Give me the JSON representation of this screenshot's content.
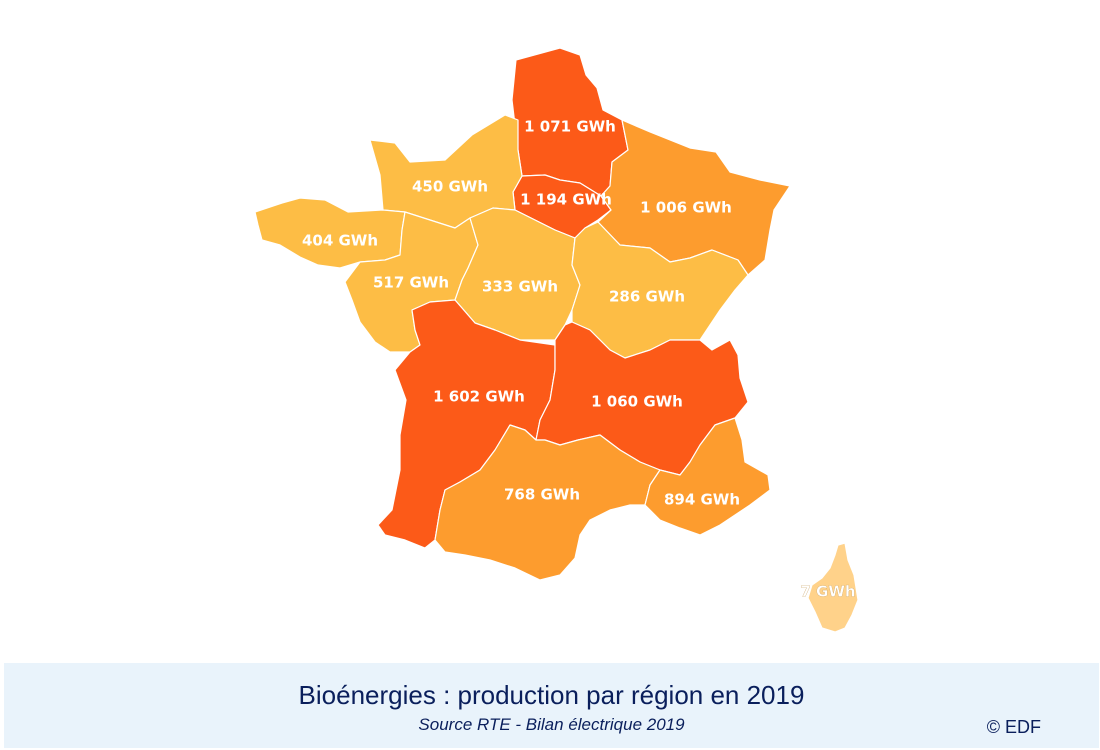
{
  "colors": {
    "scale_low": "#ffd28a",
    "scale_mid_low": "#fdbd45",
    "scale_mid": "#fd9c2e",
    "scale_high": "#fc5a18"
  },
  "regions": [
    {
      "id": "hauts-de-france",
      "value": "1 071 GWh",
      "level": "high"
    },
    {
      "id": "ile-de-france",
      "value": "1 194 GWh",
      "level": "high"
    },
    {
      "id": "grand-est",
      "value": "1 006 GWh",
      "level": "mid"
    },
    {
      "id": "normandie",
      "value": "450 GWh",
      "level": "mid_low"
    },
    {
      "id": "bretagne",
      "value": "404 GWh",
      "level": "mid_low"
    },
    {
      "id": "pays-de-la-loire",
      "value": "517 GWh",
      "level": "mid_low"
    },
    {
      "id": "centre-val-de-loire",
      "value": "333 GWh",
      "level": "mid_low"
    },
    {
      "id": "bourgogne-franche-comte",
      "value": "286 GWh",
      "level": "mid_low"
    },
    {
      "id": "nouvelle-aquitaine",
      "value": "1 602 GWh",
      "level": "high"
    },
    {
      "id": "auvergne-rhone-alpes",
      "value": "1 060 GWh",
      "level": "high"
    },
    {
      "id": "occitanie",
      "value": "768 GWh",
      "level": "mid"
    },
    {
      "id": "provence-alpes-cote-d-azur",
      "value": "894 GWh",
      "level": "mid"
    },
    {
      "id": "corse",
      "value": "7 GWh",
      "level": "low"
    }
  ],
  "footer": {
    "title": "Bioénergies : production par région en 2019",
    "source": "Source RTE - Bilan électrique 2019",
    "copyright": "© EDF"
  }
}
